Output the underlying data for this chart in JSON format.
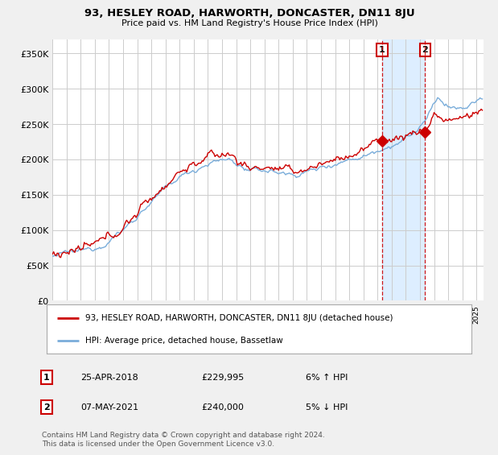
{
  "title": "93, HESLEY ROAD, HARWORTH, DONCASTER, DN11 8JU",
  "subtitle": "Price paid vs. HM Land Registry's House Price Index (HPI)",
  "ylabel_ticks": [
    "£0",
    "£50K",
    "£100K",
    "£150K",
    "£200K",
    "£250K",
    "£300K",
    "£350K"
  ],
  "ytick_values": [
    0,
    50000,
    100000,
    150000,
    200000,
    250000,
    300000,
    350000
  ],
  "ylim": [
    0,
    370000
  ],
  "xlim_start": 1995.0,
  "xlim_end": 2025.5,
  "transaction1": {
    "date_x": 2018.32,
    "price": 229995,
    "label": "1"
  },
  "transaction2": {
    "date_x": 2021.36,
    "price": 240000,
    "label": "2"
  },
  "red_line_color": "#cc0000",
  "blue_line_color": "#7aadda",
  "shade_color": "#ddeeff",
  "vline_color": "#cc0000",
  "legend_label_red": "93, HESLEY ROAD, HARWORTH, DONCASTER, DN11 8JU (detached house)",
  "legend_label_blue": "HPI: Average price, detached house, Bassetlaw",
  "table_rows": [
    {
      "num": "1",
      "date": "25-APR-2018",
      "price": "£229,995",
      "pct": "6% ↑ HPI"
    },
    {
      "num": "2",
      "date": "07-MAY-2021",
      "price": "£240,000",
      "pct": "5% ↓ HPI"
    }
  ],
  "footer": "Contains HM Land Registry data © Crown copyright and database right 2024.\nThis data is licensed under the Open Government Licence v3.0.",
  "background_color": "#f0f0f0",
  "plot_bg_color": "#ffffff",
  "grid_color": "#cccccc"
}
